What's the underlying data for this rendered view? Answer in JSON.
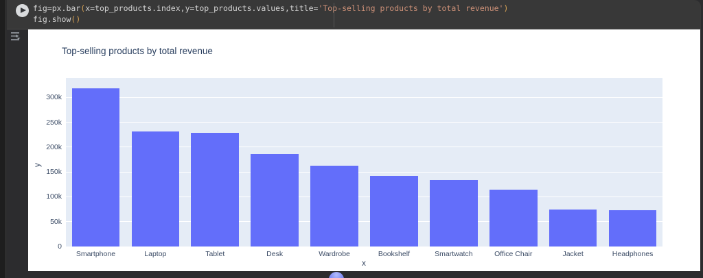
{
  "editor": {
    "line1": {
      "code_a": "fig=px.bar",
      "bracket_open": "(",
      "args": "x=top_products.index,y=top_products.values,title=",
      "string": "'Top-selling products by total revenue'",
      "bracket_close": ")"
    },
    "line2": {
      "code": "fig.show",
      "brackets": "()"
    }
  },
  "icons": {
    "run": "play-circle",
    "gutter": "cell-output-toggle"
  },
  "colors": {
    "bar": "#636EFA",
    "plot_bg": "#E5ECF6",
    "grid": "#ffffff",
    "title_text": "#2a3f5f",
    "tick_text": "#3c4c66",
    "code_default": "#d4d4d4",
    "code_string": "#ce9178",
    "code_bracket": "#d7a254",
    "fab_accent": "#6472f3"
  },
  "chart_data": {
    "type": "bar",
    "title": "Top-selling products by total revenue",
    "categories": [
      "Smartphone",
      "Laptop",
      "Tablet",
      "Desk",
      "Wardrobe",
      "Bookshelf",
      "Smartwatch",
      "Office Chair",
      "Jacket",
      "Headphones"
    ],
    "values": [
      318000,
      232000,
      229000,
      186000,
      162000,
      141500,
      134000,
      115000,
      74500,
      73000
    ],
    "xlabel": "x",
    "ylabel": "y",
    "ylim": [
      0,
      339000
    ],
    "yticks": [
      "0",
      "50k",
      "100k",
      "150k",
      "200k",
      "250k",
      "300k"
    ],
    "ytick_values": [
      0,
      50000,
      100000,
      150000,
      200000,
      250000,
      300000
    ],
    "grid": true,
    "legend": "none",
    "bar_color": "#636EFA",
    "plot_bg": "#E5ECF6"
  }
}
